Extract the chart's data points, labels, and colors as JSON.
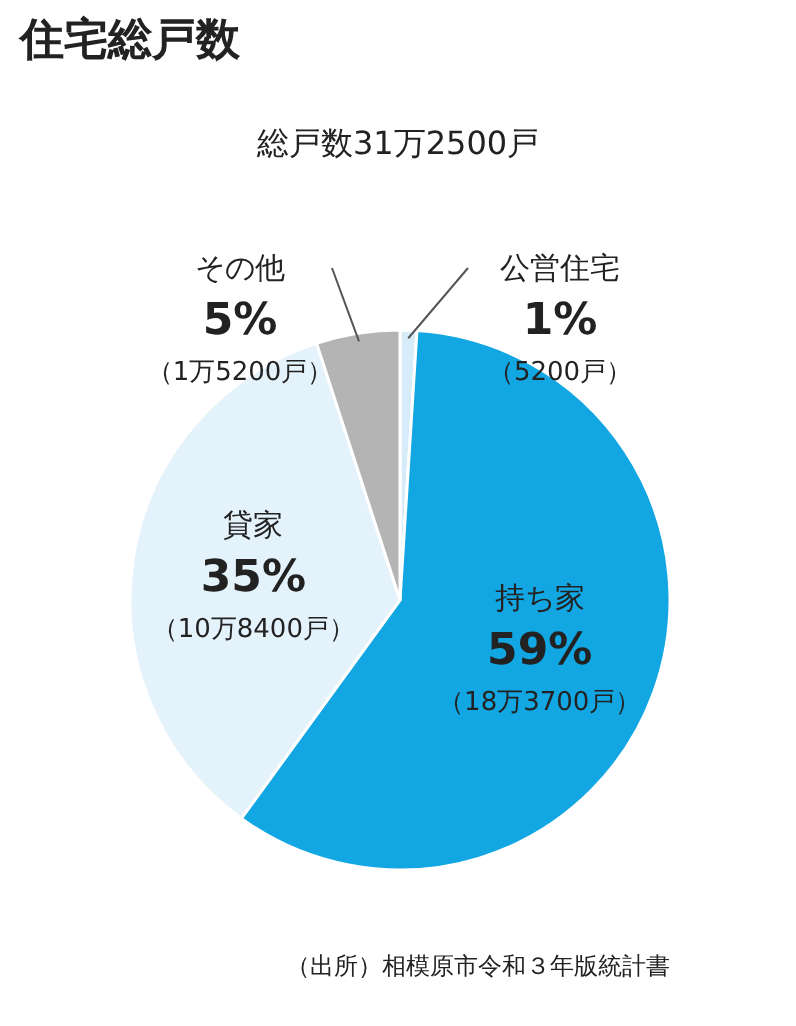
{
  "chart_data": {
    "type": "pie",
    "title": "住宅総戸数",
    "subtitle": "総戸数31万2500戸",
    "categories": [
      "公営住宅",
      "持ち家",
      "貸家",
      "その他"
    ],
    "values": [
      1,
      59,
      35,
      5
    ],
    "colors": [
      "#d6ecf8",
      "#12a7e3",
      "#e4f2fb",
      "#b4b4b4"
    ],
    "data_labels": true,
    "value_labels": [
      "1%",
      "59%",
      "35%",
      "5%"
    ],
    "annotations": [
      "（5200戸）",
      "（18万3700戸）",
      "（10万8400戸）",
      "（1万5200戸）",
      "（出所）相模原市令和３年版統計書"
    ]
  }
}
